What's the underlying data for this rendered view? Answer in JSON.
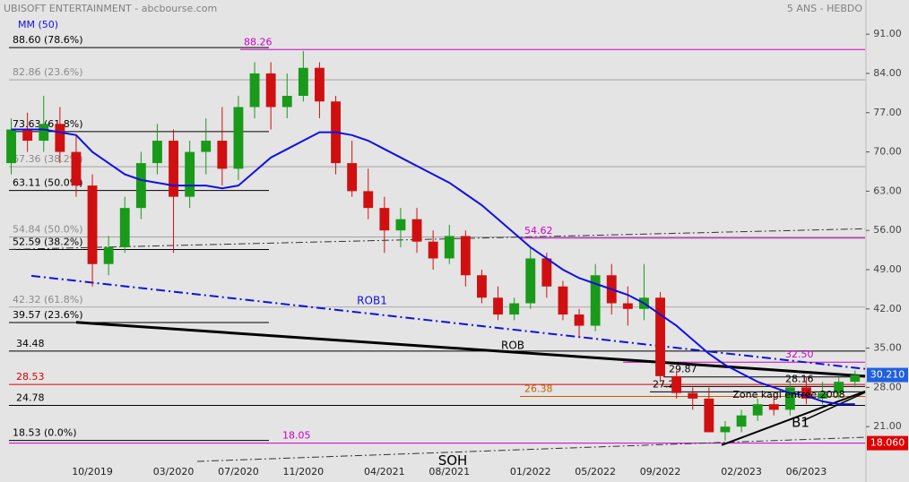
{
  "chart_data": {
    "type": "candlestick",
    "title": "UBISOFT ENTERTAINMENT - abcbourse.com",
    "subtitle": "5 ANS - HEBDO",
    "categories": [
      null,
      null,
      null,
      null,
      null,
      "10/2019",
      null,
      null,
      null,
      null,
      "03/2020",
      null,
      null,
      null,
      "07/2020",
      null,
      null,
      null,
      "11/2020",
      null,
      null,
      null,
      null,
      "04/2021",
      null,
      null,
      null,
      "08/2021",
      null,
      null,
      null,
      null,
      "01/2022",
      null,
      null,
      null,
      "05/2022",
      null,
      null,
      null,
      "09/2022",
      null,
      null,
      null,
      null,
      "02/2023",
      null,
      null,
      null,
      "06/2023",
      null,
      null,
      null
    ],
    "candles": [
      [
        68,
        76,
        66,
        74
      ],
      [
        74,
        77,
        70,
        72
      ],
      [
        72,
        80,
        70,
        75
      ],
      [
        75,
        78,
        68,
        70
      ],
      [
        70,
        73,
        62,
        64
      ],
      [
        64,
        66,
        46,
        50
      ],
      [
        50,
        55,
        48,
        53
      ],
      [
        53,
        62,
        52,
        60
      ],
      [
        60,
        70,
        58,
        68
      ],
      [
        68,
        75,
        66,
        72
      ],
      [
        72,
        74,
        52,
        62
      ],
      [
        62,
        72,
        60,
        70
      ],
      [
        70,
        76,
        66,
        72
      ],
      [
        72,
        78,
        64,
        67
      ],
      [
        67,
        80,
        65,
        78
      ],
      [
        78,
        86,
        76,
        84
      ],
      [
        84,
        86,
        74,
        78
      ],
      [
        78,
        84,
        76,
        80
      ],
      [
        80,
        88,
        79,
        85
      ],
      [
        85,
        86,
        76,
        79
      ],
      [
        79,
        80,
        66,
        68
      ],
      [
        68,
        72,
        62,
        63
      ],
      [
        63,
        67,
        58,
        60
      ],
      [
        60,
        62,
        52,
        56
      ],
      [
        56,
        60,
        53,
        58
      ],
      [
        58,
        60,
        52,
        54
      ],
      [
        54,
        56,
        49,
        51
      ],
      [
        51,
        57,
        50,
        55
      ],
      [
        55,
        56,
        46,
        48
      ],
      [
        48,
        49,
        43,
        44
      ],
      [
        44,
        46,
        40,
        41
      ],
      [
        41,
        44,
        40,
        43
      ],
      [
        43,
        53,
        42,
        51
      ],
      [
        51,
        52,
        44,
        46
      ],
      [
        46,
        47,
        40,
        41
      ],
      [
        41,
        42,
        37,
        39
      ],
      [
        39,
        50,
        38,
        48
      ],
      [
        48,
        50,
        41,
        43
      ],
      [
        43,
        46,
        39,
        42
      ],
      [
        42,
        50,
        40,
        44
      ],
      [
        44,
        45,
        29,
        30
      ],
      [
        30,
        31,
        26,
        27
      ],
      [
        27,
        28,
        24,
        26
      ],
      [
        26,
        28,
        20,
        20
      ],
      [
        20,
        22,
        18.5,
        21
      ],
      [
        21,
        24,
        20,
        23
      ],
      [
        23,
        26,
        22,
        25
      ],
      [
        25,
        27,
        23,
        24
      ],
      [
        24,
        29,
        23,
        28
      ],
      [
        28,
        30,
        25,
        26
      ],
      [
        26,
        29,
        25,
        27
      ],
      [
        27,
        30,
        26,
        29
      ],
      [
        29,
        31,
        28,
        30.21
      ]
    ],
    "up_color": "#1a9a1a",
    "down_color": "#d01010",
    "ma": {
      "name": "MM (50)",
      "color": "#1010e0",
      "values": [
        74,
        74,
        74,
        73.5,
        73,
        70,
        68,
        66,
        65,
        64.5,
        64,
        64,
        64,
        63.5,
        64,
        66.5,
        69,
        70.5,
        72,
        73.5,
        73.5,
        73,
        72,
        70.5,
        69,
        67.5,
        66,
        64.5,
        62.5,
        60.5,
        58,
        55.5,
        53,
        51,
        49,
        47.5,
        46.5,
        45.5,
        44.5,
        43,
        41,
        39,
        36.5,
        34,
        32,
        30.5,
        29,
        28,
        27,
        26.5,
        25.5,
        25,
        25
      ]
    },
    "ylim": [
      14.8,
      93.9
    ],
    "yticks": [
      {
        "value": 91,
        "label": "91.00"
      },
      {
        "value": 84,
        "label": "84.00"
      },
      {
        "value": 77,
        "label": "77.00"
      },
      {
        "value": 70,
        "label": "70.00"
      },
      {
        "value": 63,
        "label": "63.00"
      },
      {
        "value": 56,
        "label": "56.00"
      },
      {
        "value": 49,
        "label": "49.00"
      },
      {
        "value": 42,
        "label": "42.00"
      },
      {
        "value": 35,
        "label": "35.00"
      },
      {
        "value": 28,
        "label": "28.00"
      },
      {
        "value": 21,
        "label": "21.00"
      }
    ],
    "levels": [
      {
        "label": "88.60 (78.6%)",
        "value": 88.6,
        "color": "#000000"
      },
      {
        "label": "82.86 (23.6%)",
        "value": 82.86,
        "color": "#999999"
      },
      {
        "label": "73.63 (61.8%)",
        "value": 73.63,
        "color": "#000000"
      },
      {
        "label": "67.36 (38.2%)",
        "value": 67.36,
        "color": "#999999"
      },
      {
        "label": "63.11 (50.0%)",
        "value": 63.11,
        "color": "#000000"
      },
      {
        "label": "54.84 (50.0%)",
        "value": 54.84,
        "color": "#999999"
      },
      {
        "label": "52.59 (38.2%)",
        "value": 52.59,
        "color": "#000000"
      },
      {
        "label": "42.32 (61.8%)",
        "value": 42.32,
        "color": "#999999"
      },
      {
        "label": "39.57 (23.6%)",
        "value": 39.57,
        "color": "#000000"
      },
      {
        "label": "34.48",
        "value": 34.48,
        "color": "#000000"
      },
      {
        "label": "28.53",
        "value": 28.53,
        "color": "#e00000"
      },
      {
        "label": "24.78",
        "value": 24.78,
        "color": "#000000"
      },
      {
        "label": "18.53 (0.0%)",
        "value": 18.53,
        "color": "#000000"
      },
      {
        "label": "88.26",
        "value": 88.26,
        "color": "#cc00cc"
      },
      {
        "label": "54.62",
        "value": 54.62,
        "color": "#cc00cc"
      },
      {
        "label": "32.50",
        "value": 32.5,
        "color": "#cc00cc"
      },
      {
        "label": "18.05",
        "value": 18.05,
        "color": "#cc00cc"
      },
      {
        "label": "26.38",
        "value": 26.38,
        "color": "#c06000"
      },
      {
        "label": "29.87",
        "value": 29.87,
        "color": "#000000"
      },
      {
        "label": "28.16",
        "value": 28.16,
        "color": "#000000"
      },
      {
        "label": "27.20",
        "value": 27.2,
        "color": "#000000"
      }
    ],
    "trendlines": [
      {
        "values": [
          39.6,
          30.0
        ],
        "color": "#000000"
      },
      {
        "values": [
          47.9,
          31.3
        ],
        "color": "#1010e0"
      },
      {
        "values": [
          52.6,
          56.3
        ],
        "color": "#333333"
      },
      {
        "values": [
          14.8,
          19.1
        ],
        "color": "#333333"
      },
      {
        "values": [
          17.7,
          27.3
        ],
        "color": "#000000"
      },
      {
        "values": [
          22.0,
          27.1
        ],
        "color": "#000000"
      }
    ],
    "notes": [
      {
        "label": "ROB1",
        "value": 43.4,
        "color": "#1010e0"
      },
      {
        "label": "ROB",
        "value": 35.4,
        "color": "#000000"
      },
      {
        "label": "SOH",
        "value": 14.9,
        "color": "#000000"
      },
      {
        "label": "B1",
        "value": 21.7,
        "color": "#000000"
      },
      {
        "label": "Zone kagi entrée 2008",
        "value": 26.6,
        "color": "#000000"
      }
    ],
    "price_tags": [
      {
        "label": "30.210",
        "value": 30.21,
        "color": "#2060e0"
      },
      {
        "label": "18.060",
        "value": 18.06,
        "color": "#e00000"
      }
    ]
  }
}
